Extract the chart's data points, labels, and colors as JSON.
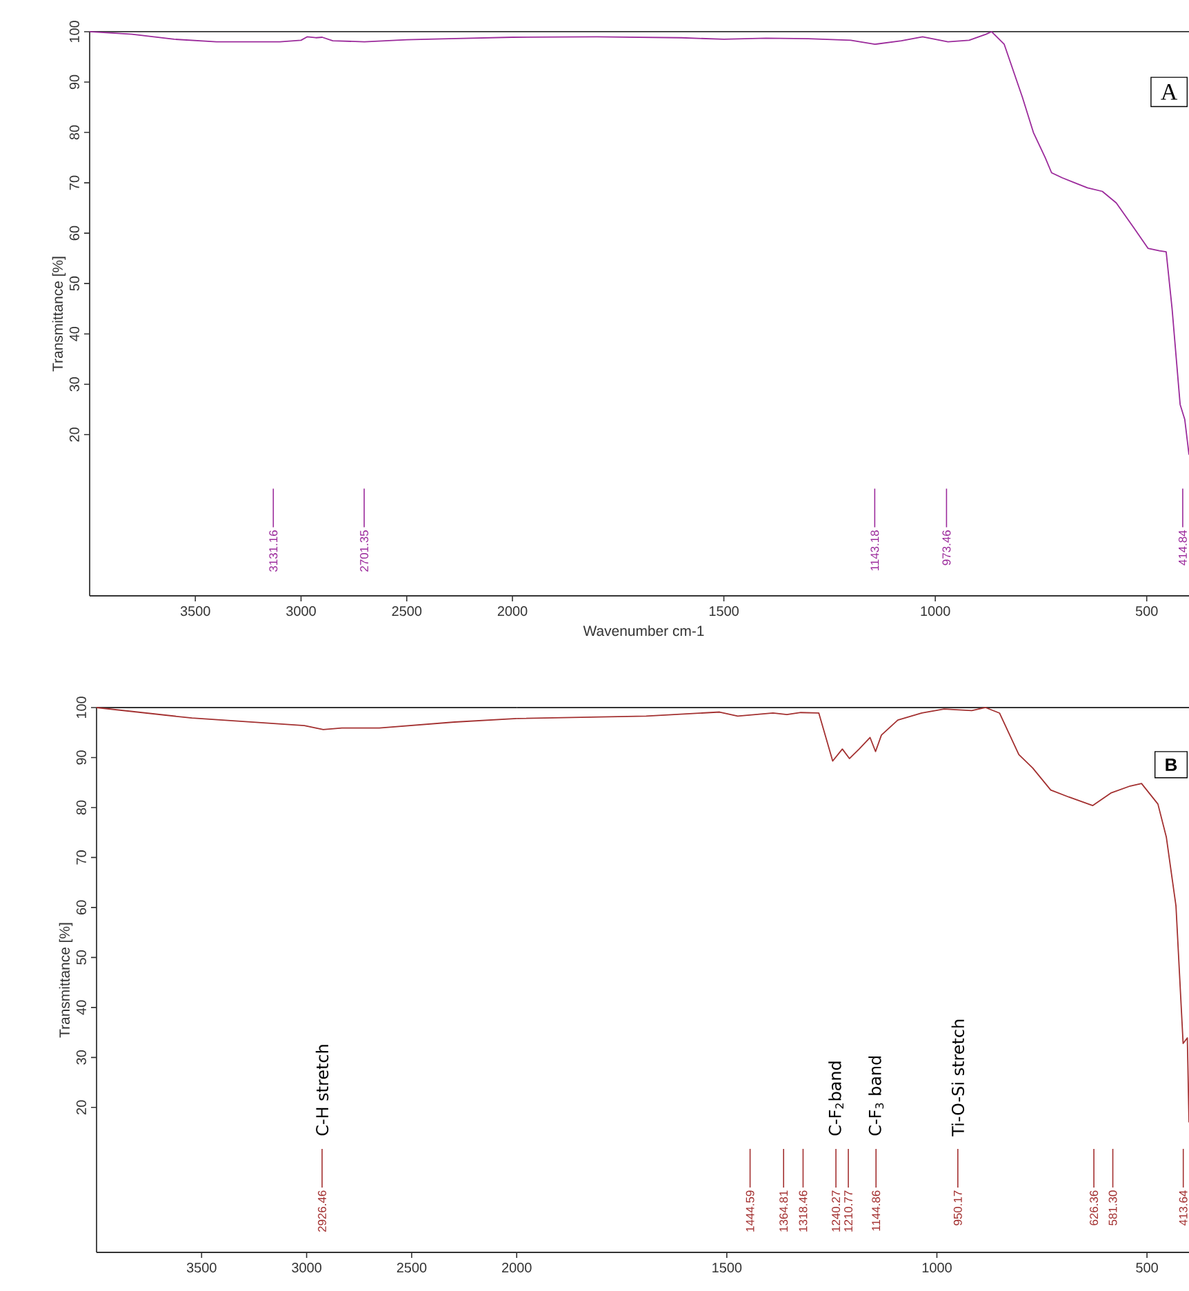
{
  "chart_data": [
    {
      "type": "line",
      "ylabel": "Transmittance [%]",
      "xlim": [
        4000,
        2000
      ],
      "xticks": [
        3500,
        3000,
        2500
      ],
      "ylim": [
        -12,
        100
      ],
      "yticks": [
        20,
        30,
        40,
        50,
        60,
        70,
        80,
        90,
        100
      ],
      "series": [
        {
          "color": "#9b2a9b",
          "x": [
            4000,
            3800,
            3600,
            3400,
            3100,
            3000,
            2970,
            2930,
            2900,
            2850,
            2700,
            2500,
            2300,
            2000
          ],
          "values": [
            100,
            99.5,
            98.5,
            98,
            98,
            98.3,
            99,
            98.8,
            98.9,
            98.2,
            98,
            98.4,
            98.6,
            98.9
          ]
        }
      ],
      "annotations": [
        "3131.16",
        "2701.35"
      ]
    },
    {
      "type": "line",
      "xlabel": "Wavenumber cm-1",
      "xlim": [
        2000,
        400
      ],
      "xticks": [
        2000,
        1500,
        1000,
        500
      ],
      "ylim": [
        -12,
        100
      ],
      "tick_labels": "x",
      "series": [
        {
          "color": "#9b2a9b",
          "x": [
            2000,
            1800,
            1600,
            1500,
            1400,
            1300,
            1200,
            1143,
            1080,
            1030,
            970,
            920,
            880,
            867,
            837,
            794,
            768,
            740,
            725,
            700,
            670,
            640,
            605,
            572,
            530,
            497,
            470,
            454,
            440,
            421,
            410,
            400
          ],
          "values": [
            98.9,
            99,
            98.8,
            98.5,
            98.7,
            98.6,
            98.3,
            97.5,
            98.2,
            99,
            98,
            98.3,
            99.5,
            100,
            97.5,
            87,
            80,
            75,
            72,
            71,
            70,
            69,
            68.3,
            66,
            61,
            57,
            56.5,
            56.3,
            45,
            26,
            23,
            16
          ]
        }
      ],
      "annotations": [
        "A",
        "1143.18",
        "973.46",
        "414.84"
      ]
    },
    {
      "type": "line",
      "ylabel": "Transmittance [%]",
      "xlim": [
        4000,
        2000
      ],
      "xticks": [
        3500,
        3000,
        2500
      ],
      "ylim": [
        -9,
        100
      ],
      "yticks": [
        20,
        30,
        40,
        50,
        60,
        70,
        80,
        90,
        100
      ],
      "series": [
        {
          "color": "#a33030",
          "x": [
            4000,
            3546,
            3011,
            2921,
            2832,
            2654,
            2296,
            2000
          ],
          "values": [
            100,
            97.9,
            96.4,
            95.6,
            95.9,
            95.9,
            97.1,
            97.8
          ]
        }
      ],
      "annotations": [
        "2926.46",
        "C-H stretch"
      ]
    },
    {
      "type": "line",
      "xlim": [
        2000,
        400
      ],
      "xticks": [
        2000,
        1500,
        1000,
        500
      ],
      "ylim": [
        -9,
        100
      ],
      "tick_labels": "x",
      "series": [
        {
          "color": "#a33030",
          "x": [
            2000,
            1692,
            1517,
            1474,
            1390,
            1357,
            1324,
            1281,
            1248,
            1225,
            1208,
            1185,
            1159,
            1146,
            1132,
            1093,
            1036,
            983,
            917,
            884,
            851,
            805,
            772,
            729,
            686,
            629,
            586,
            540,
            513,
            474,
            454,
            431,
            414,
            404,
            400
          ],
          "values": [
            97.8,
            98.3,
            99.1,
            98.3,
            98.9,
            98.6,
            99,
            98.9,
            89.3,
            91.7,
            89.8,
            91.7,
            94,
            91.2,
            94.5,
            97.5,
            98.9,
            99.7,
            99.4,
            100,
            98.9,
            90.6,
            87.9,
            83.5,
            82.1,
            80.4,
            82.9,
            84.3,
            84.8,
            80.7,
            74.1,
            60.3,
            32.8,
            33.9,
            17
          ]
        }
      ],
      "annotations": [
        "B",
        "1444.59",
        "1364.81",
        "1318.46",
        "1240.27",
        "C-F$_{2}$band",
        "1210.77",
        "1144.86",
        "C-F$_{3}$ band",
        "950.17",
        "Ti-O-Si stretch",
        "626.36",
        "581.30",
        "413.64"
      ]
    }
  ]
}
